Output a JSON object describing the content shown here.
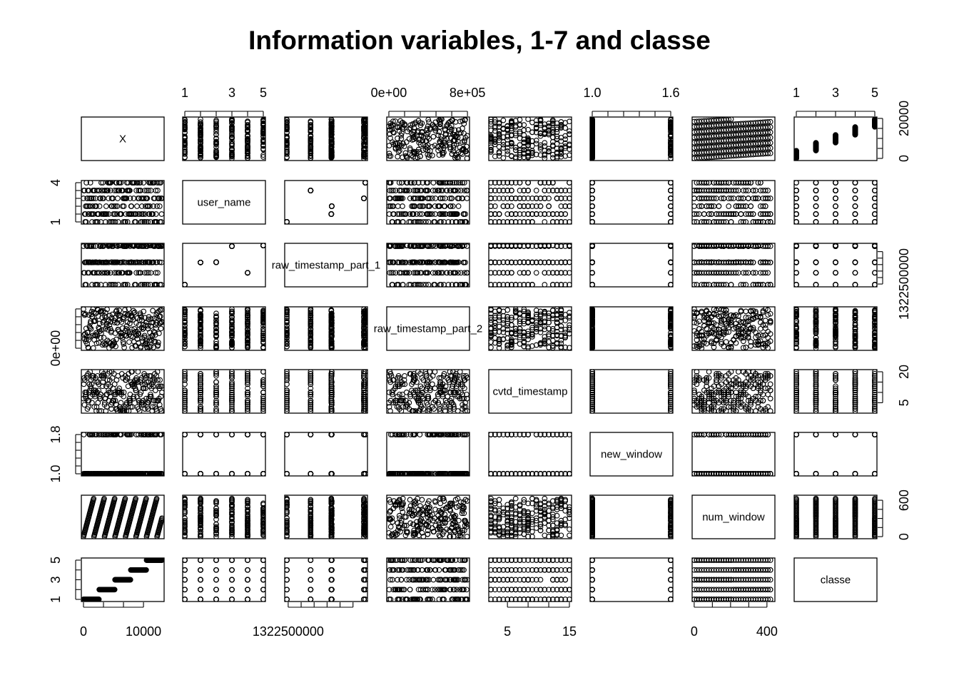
{
  "chart_data": {
    "type": "scatter",
    "kind": "scatterplot-matrix",
    "title": "Information variables, 1-7 and classe",
    "variables": [
      {
        "name": "X",
        "range": [
          1,
          19622
        ]
      },
      {
        "name": "user_name",
        "range": [
          1,
          6
        ]
      },
      {
        "name": "raw_timestamp_part_1",
        "range": [
          1322489605,
          1323095081
        ]
      },
      {
        "name": "raw_timestamp_part_2",
        "range": [
          294,
          998801
        ]
      },
      {
        "name": "cvtd_timestamp",
        "range": [
          1,
          20
        ]
      },
      {
        "name": "new_window",
        "range": [
          1,
          2
        ]
      },
      {
        "name": "num_window",
        "range": [
          1,
          864
        ]
      },
      {
        "name": "classe",
        "range": [
          1,
          5
        ]
      }
    ],
    "diagonal_labels": [
      "X",
      "user_name",
      "raw_timestamp_part_1",
      "raw_timestamp_part_2",
      "cvtd_timestamp",
      "new_window",
      "num_window",
      "classe"
    ],
    "axis_labels": {
      "top": [
        {
          "col": 1,
          "ticks": [
            1,
            2,
            3,
            4,
            5,
            6
          ],
          "labels": [
            "1",
            "3",
            "5"
          ]
        },
        {
          "col": 3,
          "ticks": [
            0,
            200000,
            400000,
            600000,
            800000,
            1000000
          ],
          "labels": [
            "0e+00",
            "8e+05"
          ]
        },
        {
          "col": 5,
          "ticks": [
            1.0,
            1.2,
            1.4,
            1.6,
            1.8,
            2.0
          ],
          "labels": [
            "1.0",
            "1.6"
          ]
        },
        {
          "col": 7,
          "ticks": [
            1,
            2,
            3,
            4,
            5
          ],
          "labels": [
            "1",
            "3",
            "5"
          ]
        }
      ],
      "bottom": [
        {
          "col": 0,
          "ticks": [
            0,
            5000,
            10000,
            15000
          ],
          "labels": [
            "0",
            "10000"
          ]
        },
        {
          "col": 2,
          "ticks": [
            1322500000,
            1322600000,
            1322700000,
            1322800000,
            1322900000,
            1323000000
          ],
          "labels": [
            "1322500000"
          ]
        },
        {
          "col": 4,
          "ticks": [
            5,
            10,
            15,
            20
          ],
          "labels": [
            "5",
            "15"
          ]
        },
        {
          "col": 6,
          "ticks": [
            0,
            200,
            400,
            600,
            800
          ],
          "labels": [
            "0",
            "400"
          ]
        }
      ],
      "left": [
        {
          "row": 1,
          "ticks": [
            1,
            2,
            3,
            4,
            5,
            6
          ],
          "labels": [
            "1",
            "4"
          ]
        },
        {
          "row": 3,
          "ticks": [
            0,
            200000,
            400000,
            600000,
            800000,
            1000000
          ],
          "labels": [
            "0e+00"
          ]
        },
        {
          "row": 5,
          "ticks": [
            1.0,
            1.2,
            1.4,
            1.6,
            1.8,
            2.0
          ],
          "labels": [
            "1.0",
            "1.8"
          ]
        },
        {
          "row": 7,
          "ticks": [
            1,
            2,
            3,
            4,
            5
          ],
          "labels": [
            "1",
            "3",
            "5"
          ]
        }
      ],
      "right": [
        {
          "row": 0,
          "ticks": [
            0,
            5000,
            10000,
            15000,
            20000
          ],
          "labels": [
            "0",
            "20000"
          ]
        },
        {
          "row": 2,
          "ticks": [
            1322500000,
            1322600000,
            1322700000,
            1322800000,
            1322900000,
            1323000000
          ],
          "labels": [
            "1322500000"
          ]
        },
        {
          "row": 4,
          "ticks": [
            5,
            10,
            15,
            20
          ],
          "labels": [
            "5",
            "20"
          ]
        },
        {
          "row": 6,
          "ticks": [
            0,
            200,
            400,
            600,
            800
          ],
          "labels": [
            "0",
            "600"
          ]
        }
      ]
    },
    "marker": "open-circle",
    "grid": false,
    "legend": "none"
  }
}
